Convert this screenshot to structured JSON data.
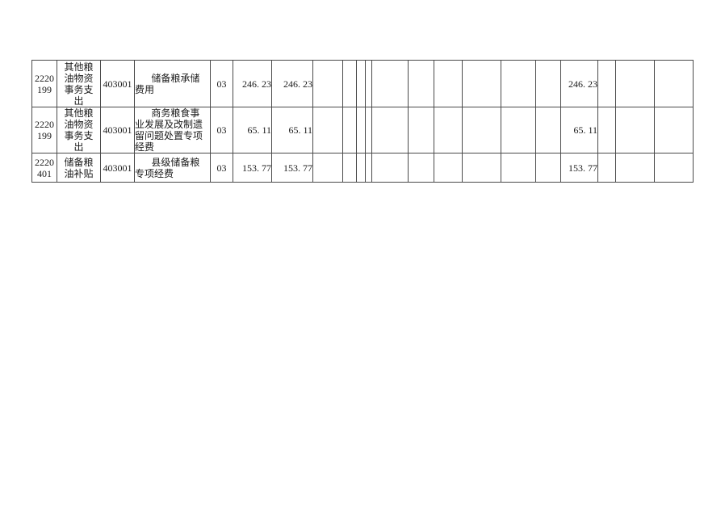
{
  "colors": {
    "background": "#ffffff",
    "border": "#4a4a4a",
    "text": "#1a1a1a"
  },
  "table": {
    "rows": [
      {
        "func_code": "2220\n199",
        "func_name": "其他粮\n油物资\n事务支\n出",
        "econ_code": "403001",
        "project_name": "储备粮承储\n费用",
        "item_code": "03",
        "amount1": "246. 23",
        "amount2": "246. 23",
        "amount3": "246. 23"
      },
      {
        "func_code": "2220\n199",
        "func_name": "其他粮\n油物资\n事务支\n出",
        "econ_code": "403001",
        "project_name": "商务粮食事\n业发展及改制遗\n留问题处置专项\n经费",
        "item_code": "03",
        "amount1": "65. 11",
        "amount2": "65. 11",
        "amount3": "65. 11"
      },
      {
        "func_code": "2220\n401",
        "func_name": "储备粮\n油补贴",
        "econ_code": "403001",
        "project_name": "县级储备粮\n专项经费",
        "item_code": "03",
        "amount1": "153. 77",
        "amount2": "153. 77",
        "amount3": "153. 77"
      }
    ]
  }
}
